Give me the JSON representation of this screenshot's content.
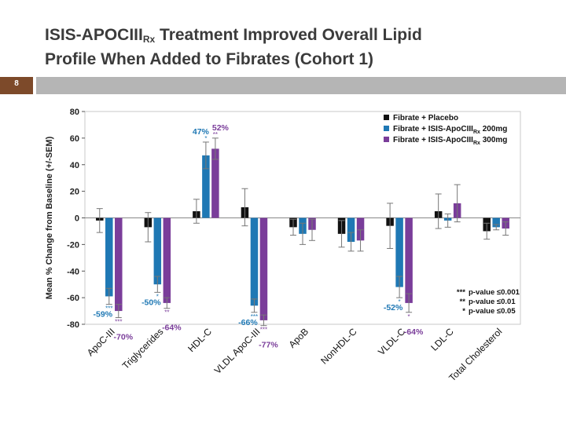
{
  "slide": {
    "title_line1_pre": "ISIS-APOCIII",
    "title_line1_sub": "Rx",
    "title_line1_post": " Treatment Improved Overall Lipid",
    "title_line2": "Profile When Added to Fibrates (Cohort 1)",
    "slide_number": "8"
  },
  "colors": {
    "placebo": "#111111",
    "dose200": "#1f78b4",
    "dose300": "#7a3d9a",
    "band_left": "#7d4a2a",
    "band_right": "#b5b5b5"
  },
  "chart_data": {
    "type": "bar",
    "title": "",
    "ylabel": "Mean % Change from Baseline (+/-SEM)",
    "xlabel": "",
    "ylim": [
      -80,
      80
    ],
    "yticks": [
      -80,
      -60,
      -40,
      -20,
      0,
      20,
      40,
      60,
      80
    ],
    "categories": [
      "ApoC-III",
      "Triglycerides",
      "HDL-C",
      "VLDL ApoC-III",
      "ApoB",
      "NonHDL-C",
      "VLDL-C",
      "LDL-C",
      "Total Cholesterol"
    ],
    "series": [
      {
        "name": "Fibrate + Placebo",
        "label_pre": "Fibrate + Placebo",
        "label_sub": "",
        "label_post": "",
        "color": "#111111",
        "values": [
          -2,
          -7,
          5,
          8,
          -7,
          -12,
          -6,
          5,
          -10
        ],
        "errors": [
          9,
          11,
          9,
          14,
          6,
          10,
          17,
          13,
          6
        ]
      },
      {
        "name": "Fibrate + ISIS-ApoCIIIRx 200mg",
        "label_pre": "Fibrate + ISIS-ApoCIII",
        "label_sub": "Rx",
        "label_post": " 200mg",
        "color": "#1f78b4",
        "values": [
          -59,
          -50,
          47,
          -66,
          -12,
          -18,
          -52,
          -2,
          -7
        ],
        "errors": [
          6,
          6,
          10,
          5,
          8,
          7,
          8,
          5,
          2
        ]
      },
      {
        "name": "Fibrate + ISIS-ApoCIIIRx 300mg",
        "label_pre": "Fibrate + ISIS-ApoCIII",
        "label_sub": "Rx",
        "label_post": " 300mg",
        "color": "#7a3d9a",
        "values": [
          -70,
          -64,
          52,
          -77,
          -9,
          -17,
          -64,
          11,
          -8
        ],
        "errors": [
          5,
          4,
          8,
          4,
          8,
          8,
          7,
          14,
          5
        ]
      }
    ],
    "annotations": [
      {
        "text": "-59%",
        "cat": 0,
        "series": 1,
        "pos": "below"
      },
      {
        "text": "-70%",
        "cat": 0,
        "series": 2,
        "pos": "below"
      },
      {
        "text": "-50%",
        "cat": 1,
        "series": 1,
        "pos": "below"
      },
      {
        "text": "-64%",
        "cat": 1,
        "series": 2,
        "pos": "below"
      },
      {
        "text": "47%",
        "cat": 2,
        "series": 1,
        "pos": "above"
      },
      {
        "text": "52%",
        "cat": 2,
        "series": 2,
        "pos": "above"
      },
      {
        "text": "-66%",
        "cat": 3,
        "series": 1,
        "pos": "below"
      },
      {
        "text": "-77%",
        "cat": 3,
        "series": 2,
        "pos": "below"
      },
      {
        "text": "-52%",
        "cat": 6,
        "series": 1,
        "pos": "below"
      },
      {
        "text": "-64%",
        "cat": 6,
        "series": 2,
        "pos": "below"
      }
    ],
    "significance": [
      {
        "text": "***",
        "cat": 0,
        "series": 1
      },
      {
        "text": "***",
        "cat": 0,
        "series": 2
      },
      {
        "text": "*",
        "cat": 1,
        "series": 1
      },
      {
        "text": "**",
        "cat": 1,
        "series": 2
      },
      {
        "text": "*",
        "cat": 2,
        "series": 1
      },
      {
        "text": "**",
        "cat": 2,
        "series": 2
      },
      {
        "text": "***",
        "cat": 3,
        "series": 1
      },
      {
        "text": "***",
        "cat": 3,
        "series": 2
      },
      {
        "text": "*",
        "cat": 6,
        "series": 1
      },
      {
        "text": "*",
        "cat": 6,
        "series": 2
      }
    ],
    "pvalue_legend": [
      {
        "stars": "***",
        "label": "p-value ≤0.001"
      },
      {
        "stars": "**",
        "label": "p-value ≤0.01"
      },
      {
        "stars": "*",
        "label": "p-value ≤0.05"
      }
    ]
  }
}
